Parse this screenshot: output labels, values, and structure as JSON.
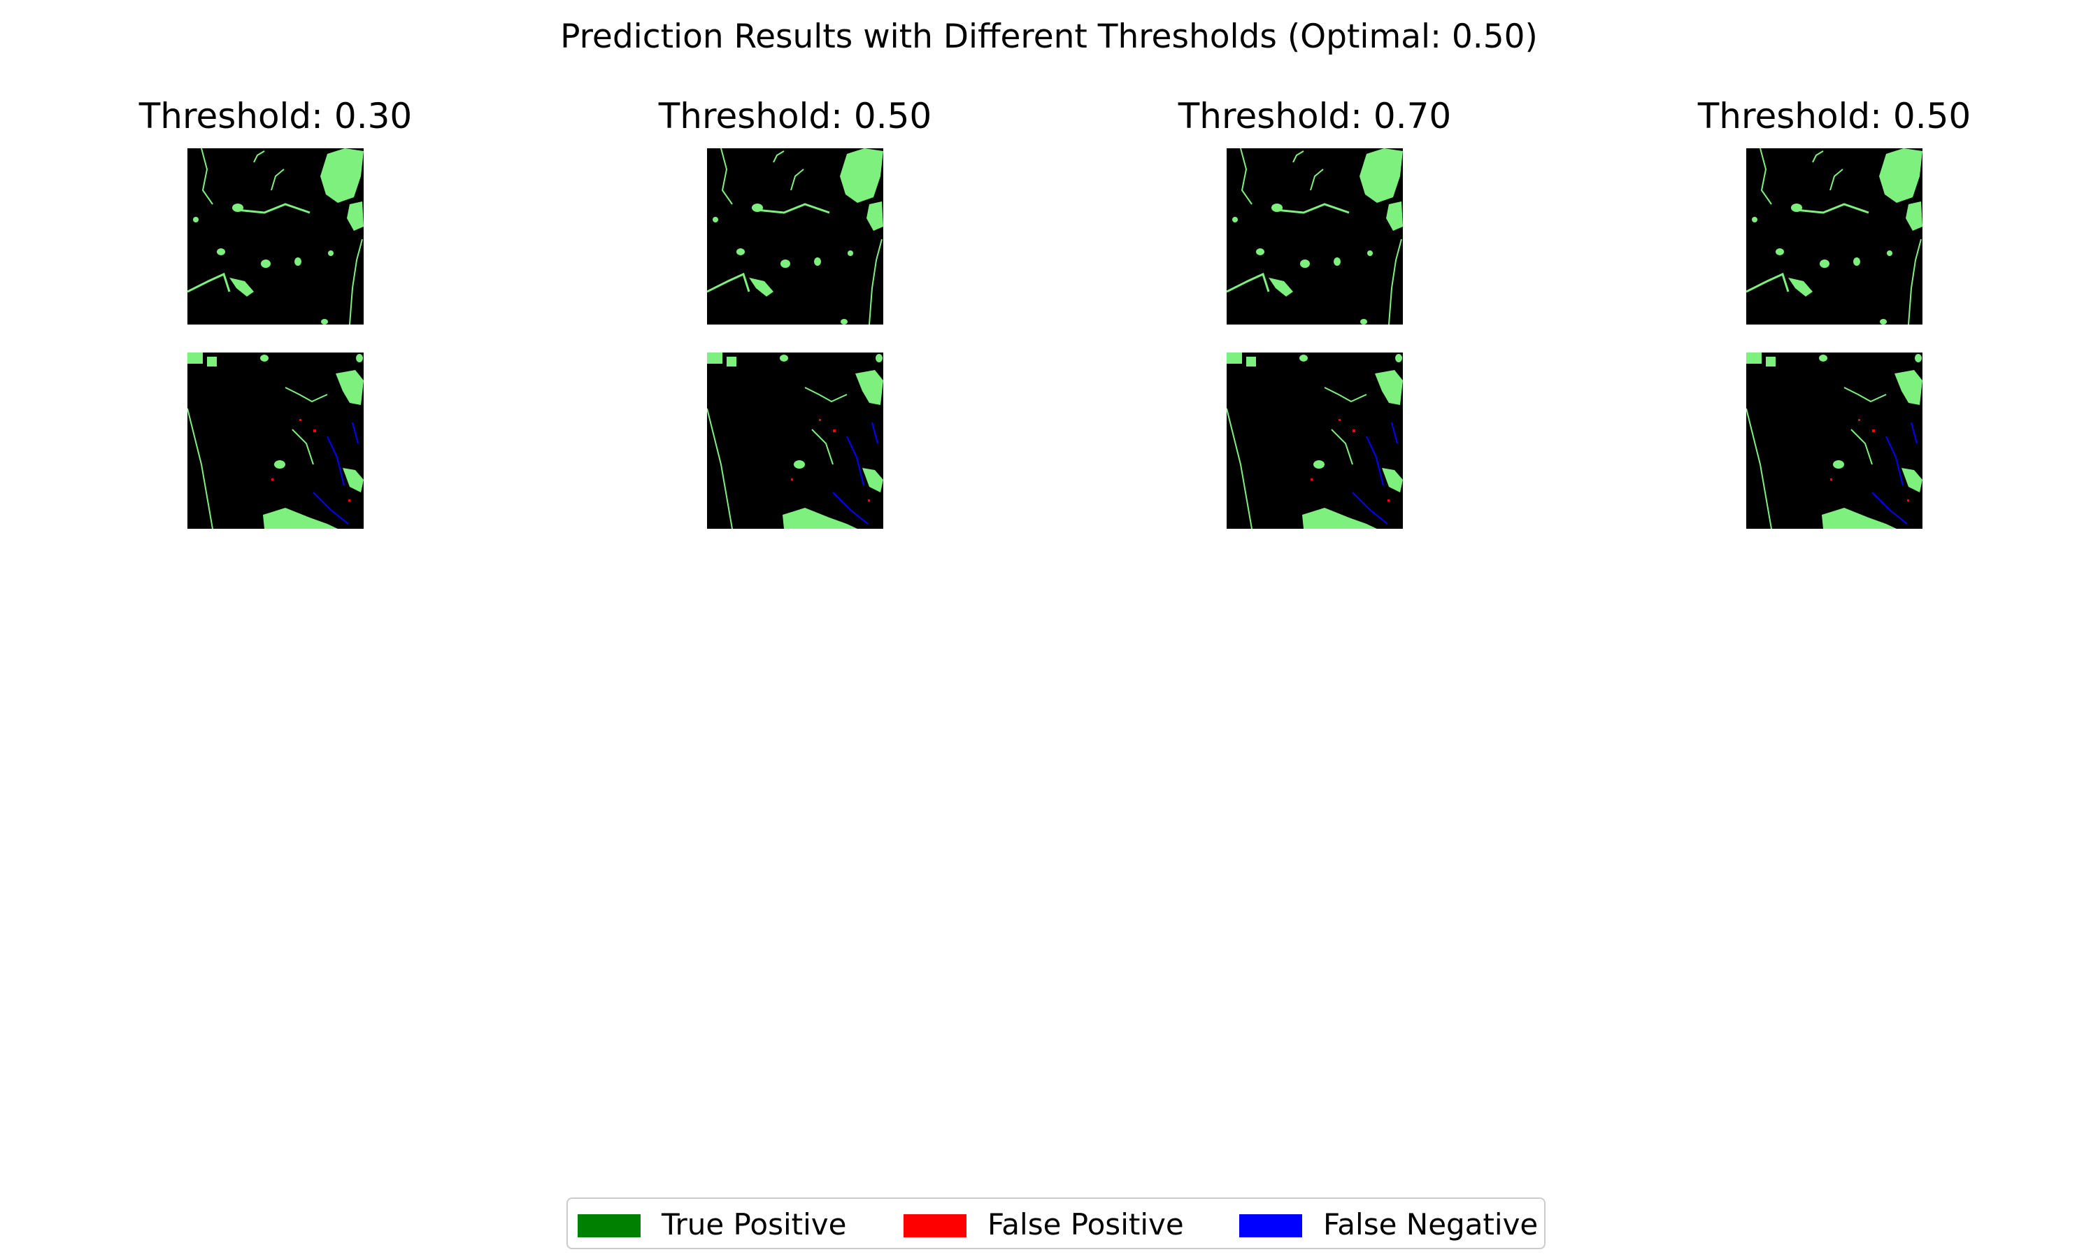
{
  "chart_data": {
    "type": "image-grid",
    "title": "Prediction Results with Different Thresholds (Optimal: 0.50)",
    "columns": [
      {
        "title": "Threshold: 0.30",
        "threshold": 0.3
      },
      {
        "title": "Threshold: 0.50",
        "threshold": 0.5
      },
      {
        "title": "Threshold: 0.70",
        "threshold": 0.7
      },
      {
        "title": "Threshold: 0.50",
        "threshold": 0.5
      }
    ],
    "rows": 2,
    "legend": [
      {
        "label": "True Positive",
        "color": "#008000"
      },
      {
        "label": "False Positive",
        "color": "#ff0000"
      },
      {
        "label": "False Negative",
        "color": "#0000ff"
      }
    ],
    "mask_colors": {
      "background": "#000000",
      "true_positive": "#7ef07e",
      "false_positive": "#ff0000",
      "false_negative": "#0000ff"
    }
  }
}
